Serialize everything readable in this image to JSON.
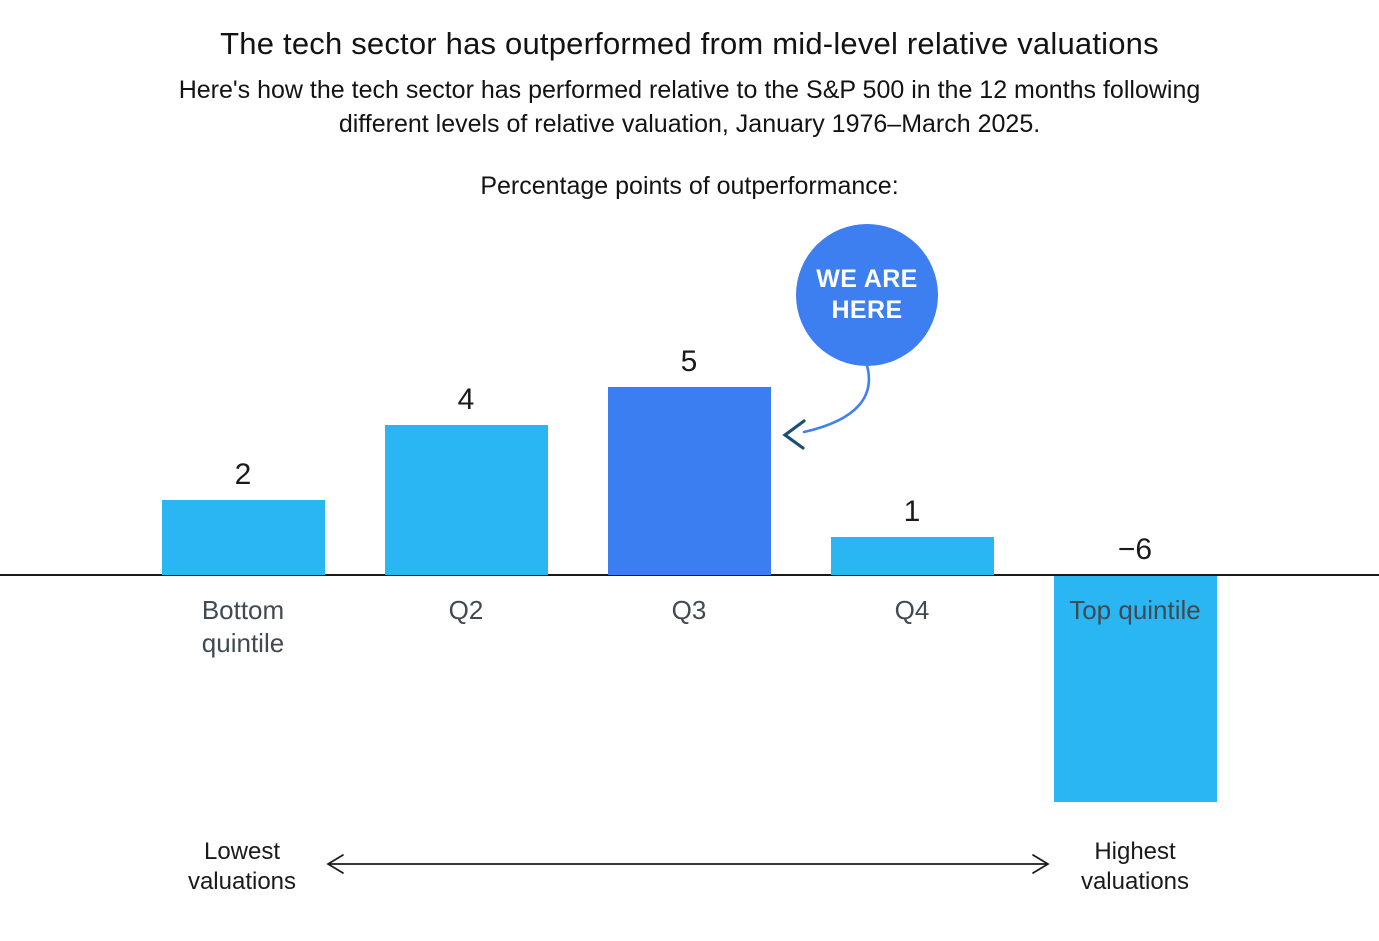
{
  "page": {
    "title": "The tech sector has outperformed from mid-level relative valuations",
    "subtitle": "Here's how the tech sector has performed relative to the S&P 500 in the 12 months following different levels of relative valuation, January 1976–March 2025."
  },
  "chart_data": {
    "type": "bar",
    "title": "Percentage points of outperformance:",
    "categories": [
      "Bottom quintile",
      "Q2",
      "Q3",
      "Q4",
      "Top quintile"
    ],
    "values": [
      2,
      4,
      5,
      1,
      -6
    ],
    "value_labels": [
      "2",
      "4",
      "5",
      "1",
      "−6"
    ],
    "highlight_index": 2,
    "baseline": 0,
    "ylim": [
      -6,
      5
    ],
    "grid": false,
    "legend": false,
    "colors": {
      "bar": "#29B6F2",
      "highlight_bar": "#3B7EF2",
      "axis_line": "#1A1A1A",
      "category_label": "#414A52",
      "value_label": "#1A1A1A",
      "bubble": "#3D7EF0",
      "bubble_text": "#FFFFFF",
      "bubble_arrow": "#3F80F2",
      "bubble_arrowhead": "#1E4F73"
    },
    "annotation": {
      "label": "WE ARE HERE",
      "target_category": "Q3"
    }
  },
  "footer": {
    "left_label": "Lowest valuations",
    "right_label": "Highest valuations"
  }
}
